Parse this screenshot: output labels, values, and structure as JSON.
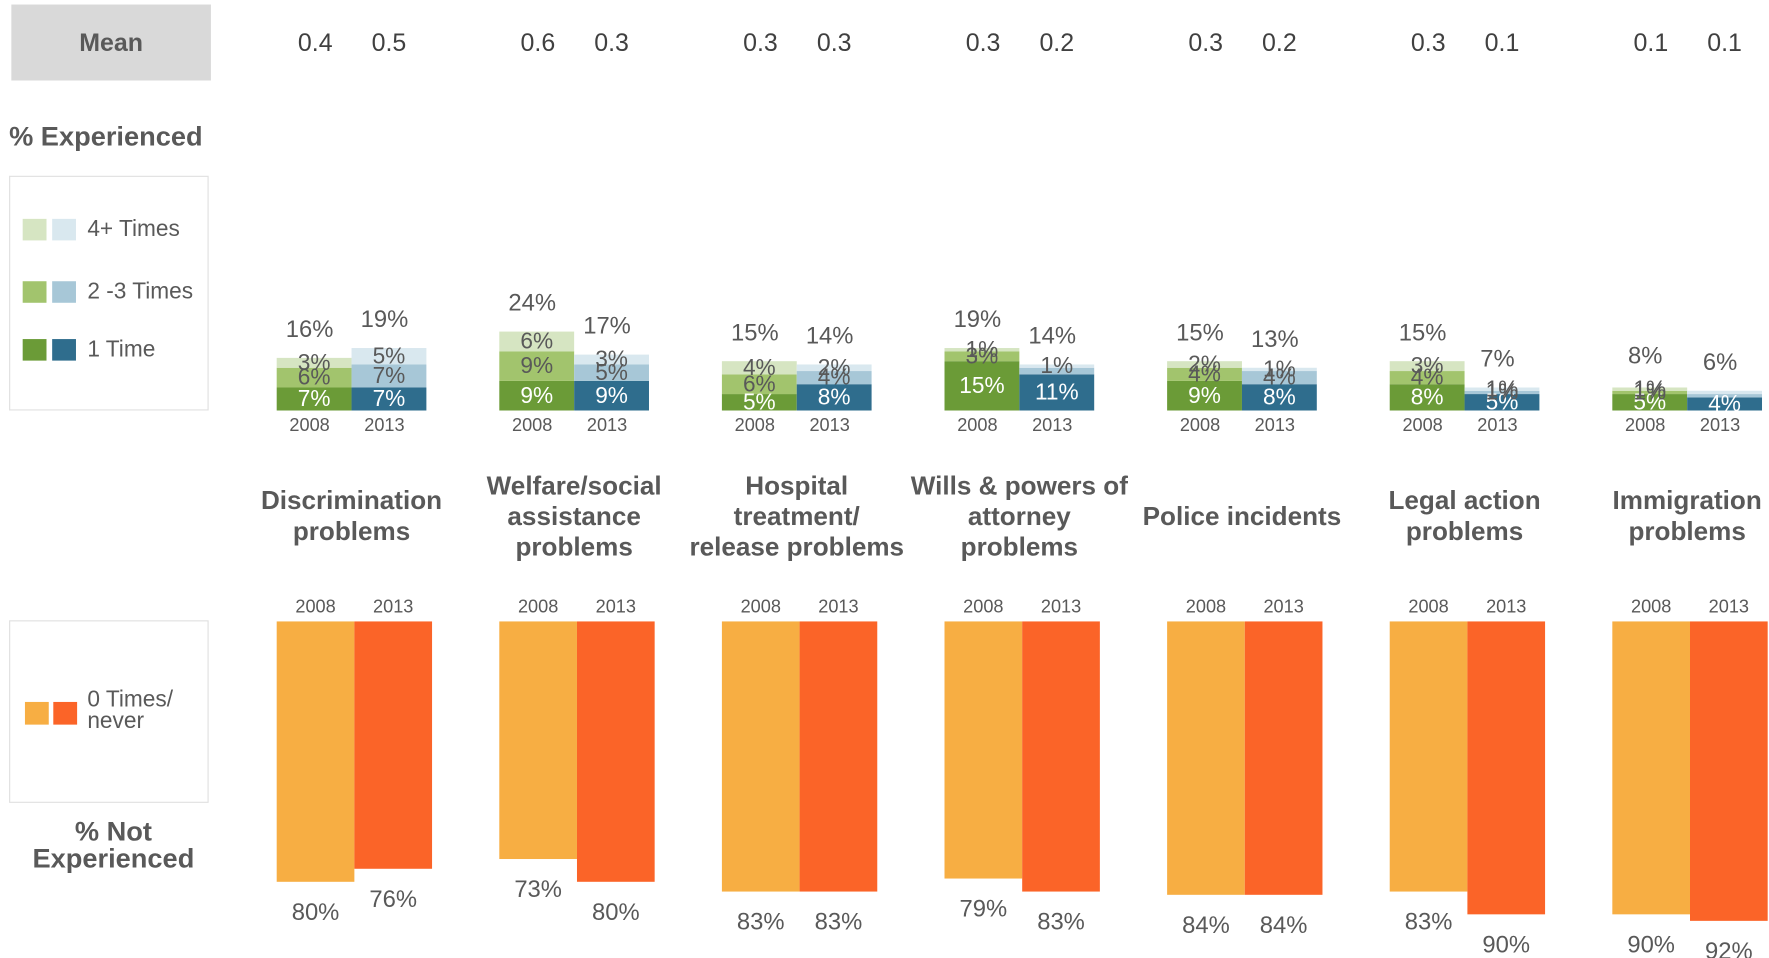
{
  "chart_data": {
    "type": "paired_stacked_bar",
    "mean_label": "Mean",
    "experienced_label": "% Experienced",
    "not_experienced_label": "% Not Experienced",
    "years": [
      "2008",
      "2013"
    ],
    "categories": [
      "Discrimination problems",
      "Welfare/social assistance problems",
      "Hospital treatment/ release problems",
      "Wills & powers of attorney problems",
      "Police incidents",
      "Legal action problems",
      "Immigration problems"
    ],
    "mean": [
      [
        0.4,
        0.5
      ],
      [
        0.6,
        0.3
      ],
      [
        0.3,
        0.3
      ],
      [
        0.3,
        0.2
      ],
      [
        0.3,
        0.2
      ],
      [
        0.3,
        0.1
      ],
      [
        0.1,
        0.1
      ]
    ],
    "experienced": {
      "series": [
        {
          "name": "1 Time",
          "colors": [
            "#6b9b37",
            "#2f6d8d"
          ],
          "values": [
            [
              7,
              7
            ],
            [
              9,
              9
            ],
            [
              5,
              8
            ],
            [
              15,
              11
            ],
            [
              9,
              8
            ],
            [
              8,
              5
            ],
            [
              5,
              4
            ]
          ],
          "value_labels": [
            [
              "7%",
              "7%"
            ],
            [
              "9%",
              "9%"
            ],
            [
              "5%",
              "8%"
            ],
            [
              "15%",
              "11%"
            ],
            [
              "9%",
              "8%"
            ],
            [
              "8%",
              "5%"
            ],
            [
              "5%",
              "4%"
            ]
          ]
        },
        {
          "name": "2 -3 Times",
          "colors": [
            "#a2c46d",
            "#a7c7d7"
          ],
          "values": [
            [
              6,
              7
            ],
            [
              9,
              5
            ],
            [
              6,
              4
            ],
            [
              3,
              2
            ],
            [
              4,
              4
            ],
            [
              4,
              1
            ],
            [
              1,
              1
            ]
          ],
          "value_labels": [
            [
              "6%",
              "7%"
            ],
            [
              "9%",
              "5%"
            ],
            [
              "6%",
              "4%"
            ],
            [
              "3%",
              null
            ],
            [
              "4%",
              "4%"
            ],
            [
              "4%",
              "1%"
            ],
            [
              "1%",
              null
            ]
          ]
        },
        {
          "name": "4+ Times",
          "colors": [
            "#d6e5c2",
            "#d9e8ef"
          ],
          "values": [
            [
              3,
              5
            ],
            [
              6,
              3
            ],
            [
              4,
              2
            ],
            [
              1,
              1
            ],
            [
              2,
              1
            ],
            [
              3,
              1
            ],
            [
              1,
              1
            ]
          ],
          "value_labels": [
            [
              "3%",
              "5%"
            ],
            [
              "6%",
              "3%"
            ],
            [
              "4%",
              "2%"
            ],
            [
              "1%",
              "1%"
            ],
            [
              "2%",
              "1%"
            ],
            [
              "3%",
              "1%"
            ],
            [
              "1%",
              null
            ]
          ]
        }
      ],
      "totals": {
        "values": [
          [
            16,
            19
          ],
          [
            24,
            17
          ],
          [
            15,
            14
          ],
          [
            19,
            14
          ],
          [
            15,
            13
          ],
          [
            15,
            7
          ],
          [
            8,
            6
          ]
        ],
        "value_labels": [
          [
            "16%",
            "19%"
          ],
          [
            "24%",
            "17%"
          ],
          [
            "15%",
            "14%"
          ],
          [
            "19%",
            "14%"
          ],
          [
            "15%",
            "13%"
          ],
          [
            "15%",
            "7%"
          ],
          [
            "8%",
            "6%"
          ]
        ]
      }
    },
    "not_experienced": {
      "name": "0 Times/ never",
      "colors": [
        "#f7ae43",
        "#fb6428"
      ],
      "values": [
        [
          80,
          76
        ],
        [
          73,
          80
        ],
        [
          83,
          83
        ],
        [
          79,
          83
        ],
        [
          84,
          84
        ],
        [
          83,
          90
        ],
        [
          90,
          92
        ]
      ],
      "value_labels": [
        [
          "80%",
          "76%"
        ],
        [
          "73%",
          "80%"
        ],
        [
          "83%",
          "83%"
        ],
        [
          "79%",
          "83%"
        ],
        [
          "84%",
          "84%"
        ],
        [
          "83%",
          "90%"
        ],
        [
          "90%",
          "92%"
        ]
      ]
    }
  }
}
